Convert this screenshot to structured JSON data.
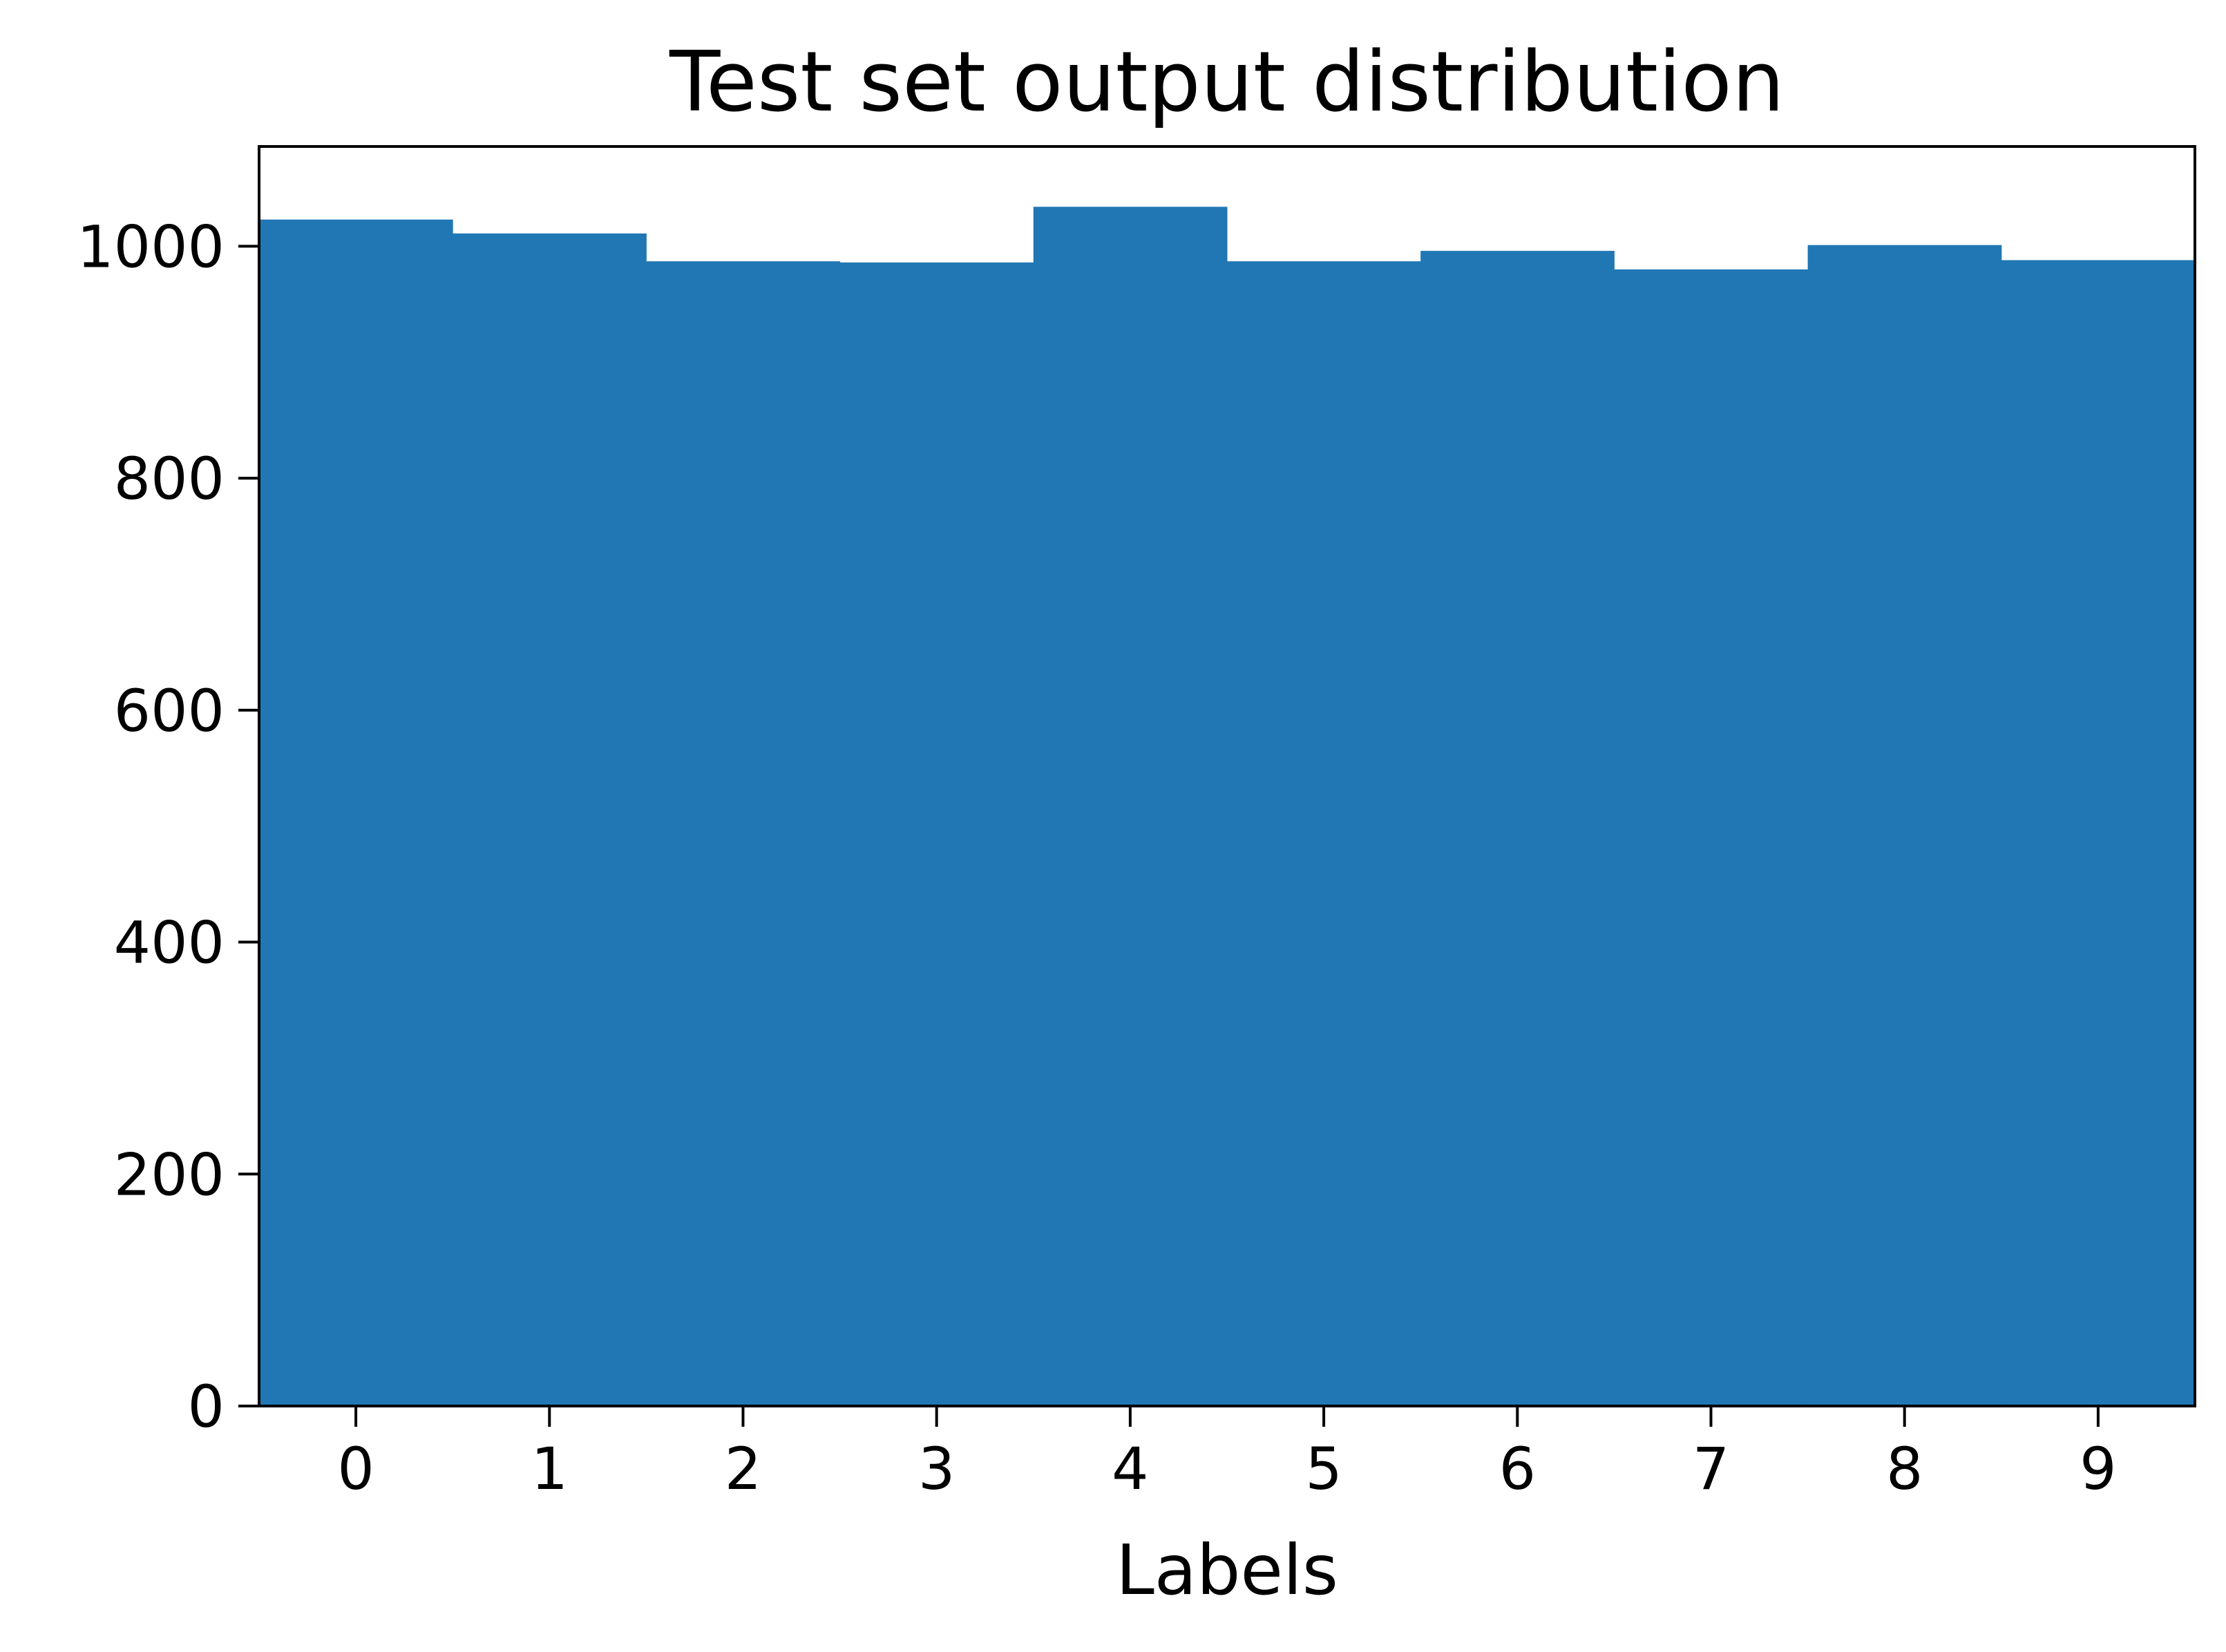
{
  "chart_data": {
    "type": "bar",
    "title": "Test set output distribution",
    "xlabel": "Labels",
    "ylabel": "",
    "categories": [
      "0",
      "1",
      "2",
      "3",
      "4",
      "5",
      "6",
      "7",
      "8",
      "9"
    ],
    "values": [
      1023,
      1011,
      987,
      986,
      1034,
      987,
      996,
      980,
      1001,
      988
    ],
    "xlim": [
      -0.5,
      9.5
    ],
    "ylim": [
      0,
      1086
    ],
    "yticks": [
      0,
      200,
      400,
      600,
      800,
      1000
    ],
    "grid": false,
    "legend": "none",
    "bar_color": "#2077b4"
  }
}
